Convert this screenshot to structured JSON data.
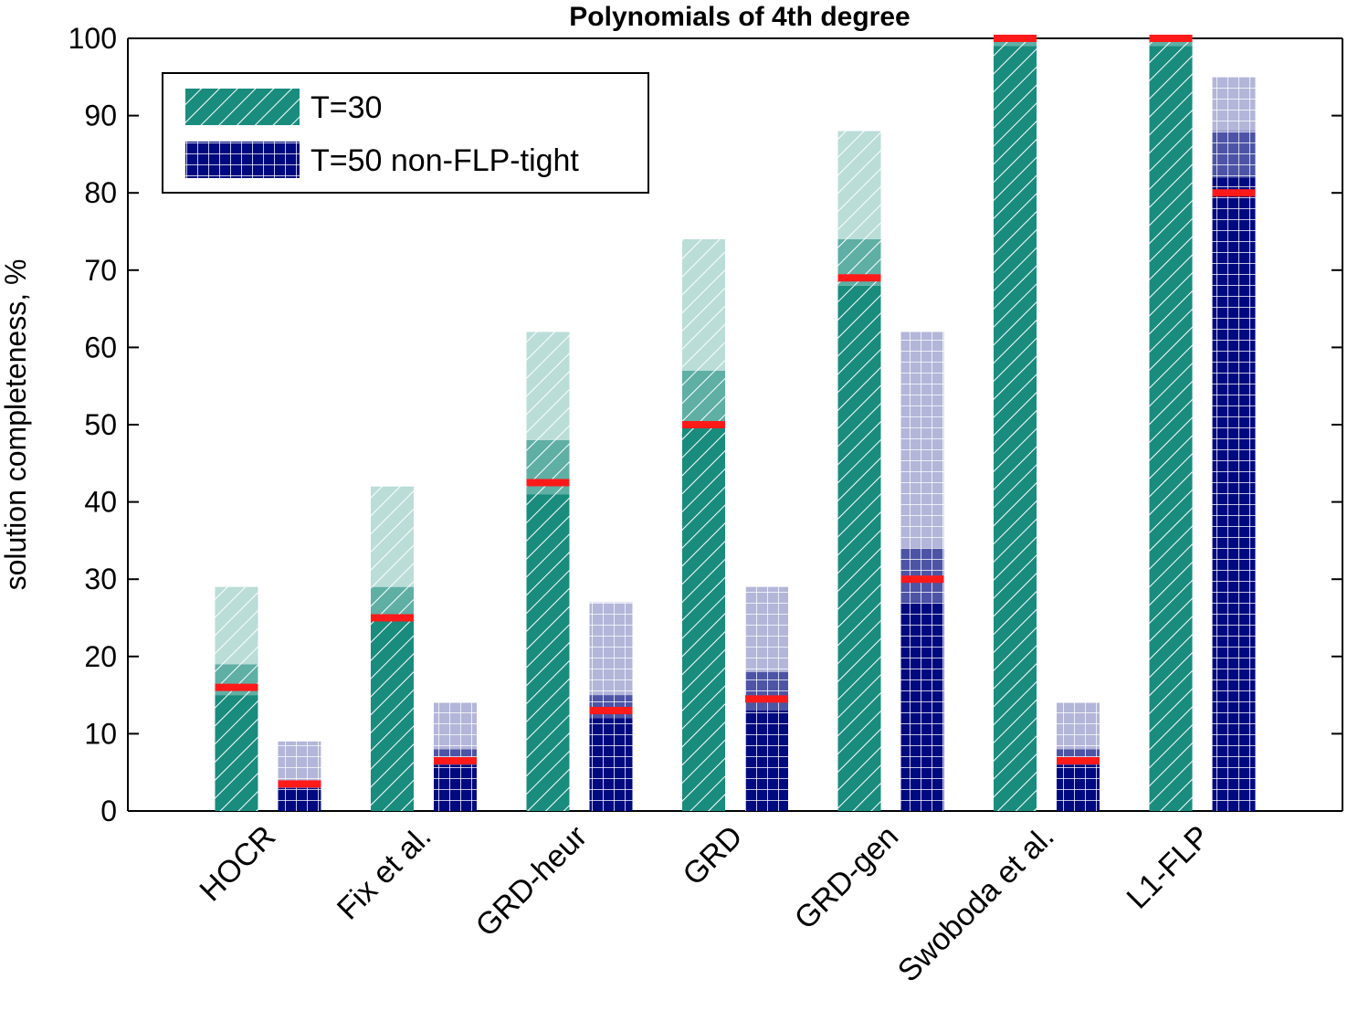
{
  "chart_data": {
    "type": "bar",
    "title": "Polynomials of 4th degree",
    "xlabel": "",
    "ylabel": "solution completeness, %",
    "ylim": [
      0,
      100
    ],
    "yticks": [
      0,
      10,
      20,
      30,
      40,
      50,
      60,
      70,
      80,
      90,
      100
    ],
    "categories": [
      "HOCR",
      "Fix et al.",
      "GRD-heur",
      "GRD",
      "GRD-gen",
      "Swoboda et al.",
      "L1-FLP"
    ],
    "legend_position": "top-left",
    "grid": false,
    "series": [
      {
        "name": "T=30",
        "color": "#1a8c7e",
        "pattern": "diagonal-hatch",
        "solid": [
          15,
          25,
          41,
          50,
          68,
          99,
          99
        ],
        "mid": [
          19,
          29,
          48,
          57,
          74,
          100,
          100
        ],
        "top": [
          29,
          42,
          62,
          74,
          88,
          100,
          100
        ],
        "mean": [
          16,
          25,
          42.5,
          50,
          69,
          100,
          100
        ]
      },
      {
        "name": "T=50 non-FLP-tight",
        "color": "#000a80",
        "pattern": "grid",
        "solid": [
          3,
          6,
          12,
          13,
          27,
          6,
          82
        ],
        "mid": [
          3,
          8,
          15,
          18,
          34,
          8,
          88
        ],
        "top": [
          9,
          14,
          27,
          29,
          62,
          14,
          95
        ],
        "mean": [
          3.5,
          6.5,
          13,
          14.5,
          30,
          6.5,
          80
        ]
      }
    ]
  }
}
